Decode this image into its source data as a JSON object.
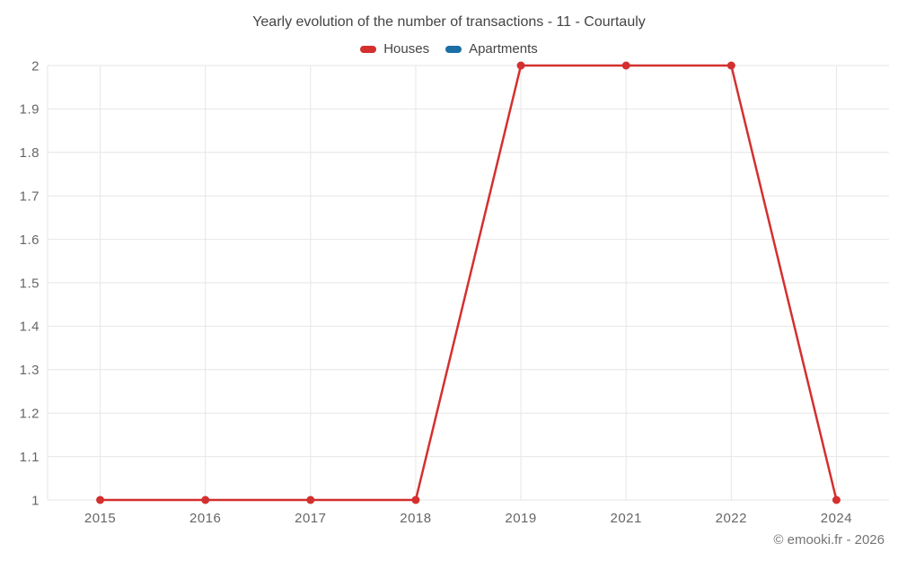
{
  "chart_data": {
    "type": "line",
    "title": "Yearly evolution of the number of transactions - 11 - Courtauly",
    "categories": [
      "2015",
      "2016",
      "2017",
      "2018",
      "2019",
      "2021",
      "2022",
      "2024"
    ],
    "series": [
      {
        "name": "Houses",
        "color": "#d3302f",
        "values": [
          1,
          1,
          1,
          1,
          2,
          2,
          2,
          1
        ]
      },
      {
        "name": "Apartments",
        "color": "#1a6fa5",
        "values": []
      }
    ],
    "ylim": [
      1,
      2
    ],
    "y_ticks": [
      "1",
      "1.1",
      "1.2",
      "1.3",
      "1.4",
      "1.5",
      "1.6",
      "1.7",
      "1.8",
      "1.9",
      "2"
    ],
    "grid": true,
    "legend_position": "top",
    "watermark": "© emooki.fr - 2026"
  }
}
